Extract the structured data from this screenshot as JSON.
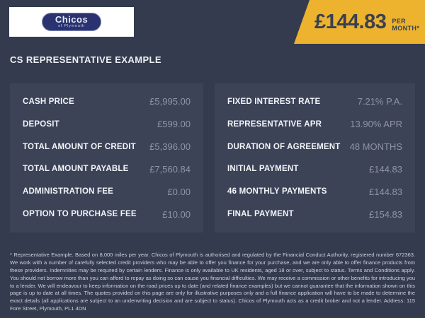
{
  "header": {
    "logo": {
      "brand": "Chicos",
      "sub": "of Plymouth"
    },
    "price_banner": {
      "amount": "£144.83",
      "period": "PER MONTH*"
    }
  },
  "section_title": "CS REPRESENTATIVE EXAMPLE",
  "finance_tables": {
    "left": {
      "rows": [
        {
          "label": "CASH PRICE",
          "value": "£5,995.00"
        },
        {
          "label": "DEPOSIT",
          "value": "£599.00"
        },
        {
          "label": "TOTAL AMOUNT OF CREDIT",
          "value": "£5,396.00"
        },
        {
          "label": "TOTAL AMOUNT PAYABLE",
          "value": "£7,560.84"
        },
        {
          "label": "ADMINISTRATION FEE",
          "value": "£0.00"
        },
        {
          "label": "OPTION TO PURCHASE FEE",
          "value": "£10.00"
        }
      ]
    },
    "right": {
      "rows": [
        {
          "label": "FIXED INTEREST RATE",
          "value": "7.21% P.A."
        },
        {
          "label": "REPRESENTATIVE APR",
          "value": "13.90% APR"
        },
        {
          "label": "DURATION OF AGREEMENT",
          "value": "48 MONTHS"
        },
        {
          "label": "INITIAL PAYMENT",
          "value": "£144.83"
        },
        {
          "label": "46 MONTHLY PAYMENTS",
          "value": "£144.83"
        },
        {
          "label": "FINAL PAYMENT",
          "value": "£154.83"
        }
      ]
    }
  },
  "disclaimer": "* Representative Example. Based on 8,000 miles per year. Chicos of Plymouth is authorised and regulated by the Financial Conduct Authority, registered number 672363. We work with a number of carefully selected credit providers who may be able to offer you finance for your purchase, and we are only able to offer finance products from these providers. Indemnities may be required by certain lenders. Finance is only available to UK residents, aged 18 or over, subject to status. Terms and Conditions apply. You should not borrow more than you can afford to repay as doing so can cause you financial difficulties. We may receive a commission or other benefits for introducing you to a lender. We will endeavour to keep information on the road prices up to date (and related finance examples) but we cannot guarantee that the information shown on this page is up to date at all times. The quotes provided on this page are only for illustrative purposes only and a full finance application will have to be made to determine the exact details (all applications are subject to an underwriting decision and are subject to status). Chicos of Plymouth acts as a credit broker and not a lender. Address: 115 Fore Street, Plymouth, PL1 4DN",
  "colors": {
    "background": "#343B4E",
    "panel": "#3C4357",
    "accent_yellow": "#EDB32E",
    "banner_text": "#3A4050",
    "label_text": "#F2F4F8",
    "value_text": "#8F95A4",
    "logo_navy": "#2A3370"
  }
}
